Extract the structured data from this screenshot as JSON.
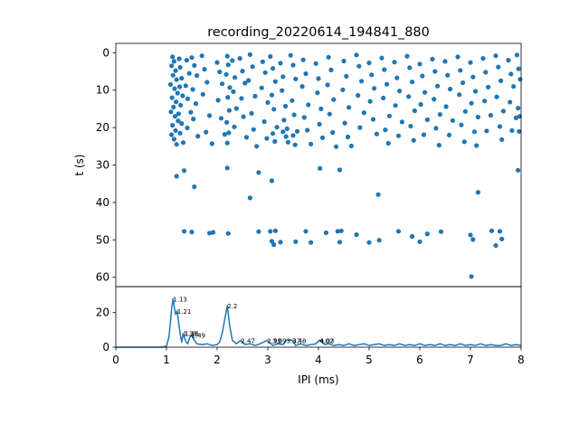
{
  "figure": {
    "title": "recording_20220614_194841_880",
    "accent_color": "#1f77b4"
  },
  "chart_data": [
    {
      "type": "scatter",
      "name": "raster",
      "title": "recording_20220614_194841_880",
      "xlabel": "",
      "ylabel": "t (s)",
      "xlim": [
        0,
        8
      ],
      "ylim": [
        62.5,
        -2.5
      ],
      "y_inverted": true,
      "yticks": [
        0,
        10,
        20,
        30,
        40,
        50,
        60
      ],
      "color": "#1f77b4",
      "points": [
        [
          1.12,
          1.1
        ],
        [
          1.15,
          2.3
        ],
        [
          1.1,
          3.5
        ],
        [
          1.18,
          4.8
        ],
        [
          1.13,
          6.0
        ],
        [
          1.2,
          7.2
        ],
        [
          1.08,
          8.5
        ],
        [
          1.16,
          9.6
        ],
        [
          1.22,
          10.8
        ],
        [
          1.11,
          12.0
        ],
        [
          1.19,
          13.1
        ],
        [
          1.14,
          14.5
        ],
        [
          1.09,
          15.8
        ],
        [
          1.17,
          17.0
        ],
        [
          1.23,
          18.2
        ],
        [
          1.12,
          19.4
        ],
        [
          1.18,
          20.8
        ],
        [
          1.1,
          21.9
        ],
        [
          1.15,
          23.1
        ],
        [
          1.2,
          24.5
        ],
        [
          1.25,
          1.6
        ],
        [
          1.27,
          3.9
        ],
        [
          1.3,
          6.8
        ],
        [
          1.26,
          9.1
        ],
        [
          1.32,
          11.5
        ],
        [
          1.28,
          14.0
        ],
        [
          1.24,
          16.3
        ],
        [
          1.3,
          18.9
        ],
        [
          1.27,
          21.5
        ],
        [
          1.33,
          24.0
        ],
        [
          1.4,
          2.0
        ],
        [
          1.45,
          5.5
        ],
        [
          1.38,
          8.8
        ],
        [
          1.42,
          12.3
        ],
        [
          1.48,
          15.9
        ],
        [
          1.41,
          20.1
        ],
        [
          1.5,
          1.3
        ],
        [
          1.55,
          3.4
        ],
        [
          1.6,
          6.1
        ],
        [
          1.52,
          9.8
        ],
        [
          1.58,
          13.6
        ],
        [
          1.53,
          17.7
        ],
        [
          1.62,
          22.3
        ],
        [
          1.7,
          0.8
        ],
        [
          1.75,
          4.4
        ],
        [
          1.8,
          7.9
        ],
        [
          1.72,
          11.1
        ],
        [
          1.85,
          16.8
        ],
        [
          1.78,
          21.2
        ],
        [
          1.9,
          24.3
        ],
        [
          2.0,
          2.6
        ],
        [
          2.05,
          5.1
        ],
        [
          2.1,
          8.3
        ],
        [
          2.02,
          12.7
        ],
        [
          2.08,
          17.5
        ],
        [
          2.15,
          21.8
        ],
        [
          2.2,
          0.9
        ],
        [
          2.22,
          3.2
        ],
        [
          2.18,
          5.8
        ],
        [
          2.25,
          9.3
        ],
        [
          2.21,
          11.9
        ],
        [
          2.24,
          15.4
        ],
        [
          2.19,
          18.6
        ],
        [
          2.23,
          21.4
        ],
        [
          2.2,
          24.1
        ],
        [
          2.3,
          2.1
        ],
        [
          2.35,
          6.6
        ],
        [
          2.32,
          10.4
        ],
        [
          2.38,
          14.9
        ],
        [
          2.34,
          19.8
        ],
        [
          2.45,
          1.5
        ],
        [
          2.5,
          4.9
        ],
        [
          2.55,
          8.1
        ],
        [
          2.48,
          12.2
        ],
        [
          2.52,
          17.1
        ],
        [
          2.58,
          22.6
        ],
        [
          2.65,
          0.5
        ],
        [
          2.7,
          3.7
        ],
        [
          2.62,
          7.4
        ],
        [
          2.75,
          11.6
        ],
        [
          2.68,
          16.2
        ],
        [
          2.72,
          20.5
        ],
        [
          2.78,
          25.0
        ],
        [
          2.9,
          2.4
        ],
        [
          2.95,
          5.3
        ],
        [
          2.88,
          9.4
        ],
        [
          3.0,
          13.3
        ],
        [
          2.93,
          18.4
        ],
        [
          2.98,
          22.9
        ],
        [
          3.05,
          1.0
        ],
        [
          3.1,
          4.2
        ],
        [
          3.15,
          7.7
        ],
        [
          3.08,
          11.3
        ],
        [
          3.12,
          15.1
        ],
        [
          3.18,
          19.9
        ],
        [
          3.1,
          21.6
        ],
        [
          3.14,
          23.7
        ],
        [
          3.25,
          2.8
        ],
        [
          3.3,
          6.4
        ],
        [
          3.28,
          10.1
        ],
        [
          3.35,
          14.3
        ],
        [
          3.32,
          18.0
        ],
        [
          3.38,
          20.3
        ],
        [
          3.3,
          21.1
        ],
        [
          3.36,
          22.4
        ],
        [
          3.4,
          23.9
        ],
        [
          3.45,
          0.7
        ],
        [
          3.5,
          3.3
        ],
        [
          3.55,
          7.0
        ],
        [
          3.48,
          12.8
        ],
        [
          3.52,
          16.6
        ],
        [
          3.58,
          21.0
        ],
        [
          3.5,
          22.1
        ],
        [
          3.54,
          24.6
        ],
        [
          3.7,
          1.9
        ],
        [
          3.75,
          5.6
        ],
        [
          3.68,
          9.0
        ],
        [
          3.8,
          13.9
        ],
        [
          3.72,
          17.3
        ],
        [
          3.78,
          20.7
        ],
        [
          3.85,
          24.4
        ],
        [
          3.95,
          2.9
        ],
        [
          4.0,
          6.9
        ],
        [
          3.98,
          10.7
        ],
        [
          4.05,
          15.0
        ],
        [
          4.02,
          19.1
        ],
        [
          4.08,
          22.7
        ],
        [
          4.2,
          1.2
        ],
        [
          4.25,
          4.6
        ],
        [
          4.18,
          8.6
        ],
        [
          4.3,
          12.5
        ],
        [
          4.22,
          16.4
        ],
        [
          4.28,
          21.3
        ],
        [
          4.35,
          25.1
        ],
        [
          4.5,
          2.2
        ],
        [
          4.55,
          6.3
        ],
        [
          4.48,
          9.9
        ],
        [
          4.6,
          14.6
        ],
        [
          4.52,
          18.8
        ],
        [
          4.58,
          22.5
        ],
        [
          4.65,
          24.9
        ],
        [
          4.75,
          0.6
        ],
        [
          4.8,
          3.6
        ],
        [
          4.85,
          7.6
        ],
        [
          4.78,
          11.4
        ],
        [
          4.9,
          16.0
        ],
        [
          4.82,
          20.0
        ],
        [
          5.0,
          2.7
        ],
        [
          5.05,
          5.9
        ],
        [
          5.1,
          9.5
        ],
        [
          5.02,
          13.0
        ],
        [
          5.08,
          17.8
        ],
        [
          5.15,
          21.7
        ],
        [
          5.25,
          1.4
        ],
        [
          5.3,
          4.5
        ],
        [
          5.35,
          8.4
        ],
        [
          5.28,
          12.1
        ],
        [
          5.4,
          16.9
        ],
        [
          5.32,
          20.6
        ],
        [
          5.38,
          24.2
        ],
        [
          5.5,
          2.5
        ],
        [
          5.55,
          6.7
        ],
        [
          5.6,
          10.2
        ],
        [
          5.52,
          14.1
        ],
        [
          5.65,
          18.5
        ],
        [
          5.58,
          22.2
        ],
        [
          5.75,
          0.9
        ],
        [
          5.8,
          4.0
        ],
        [
          5.85,
          7.8
        ],
        [
          5.78,
          11.7
        ],
        [
          5.9,
          15.5
        ],
        [
          5.82,
          19.6
        ],
        [
          5.88,
          23.4
        ],
        [
          6.0,
          3.0
        ],
        [
          6.05,
          6.2
        ],
        [
          6.1,
          10.6
        ],
        [
          6.02,
          13.8
        ],
        [
          6.15,
          17.9
        ],
        [
          6.08,
          21.9
        ],
        [
          6.25,
          1.7
        ],
        [
          6.3,
          5.0
        ],
        [
          6.35,
          8.9
        ],
        [
          6.28,
          12.4
        ],
        [
          6.4,
          16.5
        ],
        [
          6.32,
          20.2
        ],
        [
          6.38,
          24.7
        ],
        [
          6.5,
          2.3
        ],
        [
          6.55,
          6.0
        ],
        [
          6.6,
          9.7
        ],
        [
          6.52,
          14.4
        ],
        [
          6.65,
          18.1
        ],
        [
          6.58,
          22.0
        ],
        [
          6.75,
          1.1
        ],
        [
          6.8,
          4.7
        ],
        [
          6.85,
          8.0
        ],
        [
          6.78,
          11.2
        ],
        [
          6.9,
          15.7
        ],
        [
          6.82,
          19.3
        ],
        [
          6.88,
          23.8
        ],
        [
          7.0,
          2.6
        ],
        [
          7.05,
          6.5
        ],
        [
          7.1,
          10.3
        ],
        [
          7.02,
          13.5
        ],
        [
          7.15,
          17.2
        ],
        [
          7.08,
          21.1
        ],
        [
          7.12,
          24.8
        ],
        [
          7.25,
          1.5
        ],
        [
          7.3,
          5.2
        ],
        [
          7.35,
          9.2
        ],
        [
          7.28,
          12.9
        ],
        [
          7.4,
          16.7
        ],
        [
          7.32,
          20.9
        ],
        [
          7.5,
          0.8
        ],
        [
          7.55,
          3.8
        ],
        [
          7.6,
          7.5
        ],
        [
          7.52,
          11.8
        ],
        [
          7.65,
          15.6
        ],
        [
          7.58,
          19.7
        ],
        [
          7.62,
          23.2
        ],
        [
          7.75,
          2.0
        ],
        [
          7.8,
          5.7
        ],
        [
          7.85,
          9.0
        ],
        [
          7.78,
          13.2
        ],
        [
          7.9,
          17.4
        ],
        [
          7.82,
          20.8
        ],
        [
          7.92,
          0.6
        ],
        [
          7.95,
          4.3
        ],
        [
          7.98,
          7.1
        ],
        [
          7.94,
          14.8
        ],
        [
          7.97,
          17.0
        ],
        [
          7.96,
          21.0
        ],
        [
          1.2,
          33.0
        ],
        [
          1.35,
          31.5
        ],
        [
          1.55,
          35.8
        ],
        [
          2.2,
          30.8
        ],
        [
          2.65,
          38.8
        ],
        [
          2.82,
          32.0
        ],
        [
          3.08,
          34.2
        ],
        [
          4.03,
          30.9
        ],
        [
          4.42,
          31.3
        ],
        [
          5.18,
          37.9
        ],
        [
          7.15,
          37.3
        ],
        [
          7.94,
          31.4
        ],
        [
          1.35,
          47.7
        ],
        [
          1.5,
          47.9
        ],
        [
          1.85,
          48.2
        ],
        [
          1.92,
          48.0
        ],
        [
          2.22,
          48.3
        ],
        [
          2.82,
          47.8
        ],
        [
          3.05,
          47.7
        ],
        [
          3.08,
          50.4
        ],
        [
          3.12,
          51.3
        ],
        [
          3.15,
          47.6
        ],
        [
          3.25,
          50.6
        ],
        [
          3.55,
          50.5
        ],
        [
          3.75,
          47.7
        ],
        [
          3.85,
          50.7
        ],
        [
          4.15,
          48.1
        ],
        [
          4.38,
          47.7
        ],
        [
          4.42,
          50.6
        ],
        [
          4.45,
          47.6
        ],
        [
          4.75,
          48.6
        ],
        [
          5.0,
          50.7
        ],
        [
          5.2,
          50.1
        ],
        [
          5.58,
          47.7
        ],
        [
          5.85,
          49.1
        ],
        [
          6.0,
          50.5
        ],
        [
          6.15,
          48.4
        ],
        [
          6.42,
          47.8
        ],
        [
          7.0,
          48.7
        ],
        [
          7.05,
          49.9
        ],
        [
          7.42,
          47.6
        ],
        [
          7.5,
          51.5
        ],
        [
          7.58,
          47.7
        ],
        [
          7.62,
          49.8
        ],
        [
          7.02,
          59.8
        ]
      ]
    },
    {
      "type": "line",
      "name": "histogram",
      "xlabel": "IPI (ms)",
      "ylabel": "",
      "xlim": [
        0,
        8
      ],
      "ylim": [
        0,
        35
      ],
      "xticks": [
        0,
        1,
        2,
        3,
        4,
        5,
        6,
        7,
        8
      ],
      "yticks": [
        0,
        20
      ],
      "color": "#1f77b4",
      "x": [
        0,
        0.5,
        0.9,
        1.0,
        1.05,
        1.08,
        1.1,
        1.13,
        1.15,
        1.18,
        1.21,
        1.25,
        1.28,
        1.3,
        1.33,
        1.36,
        1.39,
        1.42,
        1.45,
        1.49,
        1.55,
        1.6,
        1.7,
        1.8,
        1.9,
        2.0,
        2.05,
        2.1,
        2.15,
        2.2,
        2.25,
        2.3,
        2.38,
        2.47,
        2.55,
        2.65,
        2.75,
        2.85,
        2.99,
        3.1,
        3.2,
        3.3,
        3.37,
        3.48,
        3.55,
        3.65,
        3.75,
        3.85,
        3.95,
        4.02,
        4.03,
        4.12,
        4.2,
        4.3,
        4.4,
        4.5,
        4.6,
        4.7,
        4.8,
        4.9,
        5.0,
        5.1,
        5.2,
        5.3,
        5.4,
        5.5,
        5.6,
        5.7,
        5.8,
        5.9,
        6.0,
        6.1,
        6.2,
        6.3,
        6.4,
        6.5,
        6.6,
        6.7,
        6.8,
        6.9,
        7.0,
        7.1,
        7.2,
        7.3,
        7.4,
        7.5,
        7.6,
        7.7,
        7.8,
        7.9,
        8.0
      ],
      "y": [
        0,
        0,
        0,
        0.5,
        6,
        15,
        22,
        28,
        24,
        19,
        21,
        12,
        6,
        3,
        8,
        5,
        3,
        2,
        5,
        7,
        4,
        2,
        1.5,
        2,
        1,
        1.5,
        3,
        8,
        16,
        24,
        12,
        4,
        2,
        4,
        1.5,
        2,
        1,
        2,
        4,
        1,
        2,
        1.5,
        4,
        4,
        1,
        2,
        1,
        1.5,
        2,
        4,
        4,
        1.5,
        2,
        1,
        1.5,
        1,
        2,
        1,
        1.5,
        2,
        1,
        1.5,
        2,
        1,
        1.5,
        1,
        2,
        1,
        1.5,
        1,
        2,
        1,
        1.5,
        1,
        2,
        1,
        1.5,
        1,
        2,
        1,
        1.5,
        1,
        2,
        1,
        1.5,
        1,
        1,
        2,
        1,
        1.5,
        1
      ],
      "annotations": [
        {
          "x": 1.13,
          "y": 28,
          "text": "1.13"
        },
        {
          "x": 1.21,
          "y": 21,
          "text": "1.21"
        },
        {
          "x": 1.33,
          "y": 8,
          "text": "1.33"
        },
        {
          "x": 1.36,
          "y": 8,
          "text": "1.36"
        },
        {
          "x": 1.49,
          "y": 7,
          "text": "1.49"
        },
        {
          "x": 2.2,
          "y": 24,
          "text": "2.2"
        },
        {
          "x": 2.47,
          "y": 4,
          "text": "2.47"
        },
        {
          "x": 2.99,
          "y": 4,
          "text": "2.99"
        },
        {
          "x": 3.09,
          "y": 4,
          "text": "3.09"
        },
        {
          "x": 3.37,
          "y": 4,
          "text": "3.37"
        },
        {
          "x": 3.48,
          "y": 4,
          "text": "3.48"
        },
        {
          "x": 4.02,
          "y": 4,
          "text": "4.02"
        },
        {
          "x": 4.03,
          "y": 4,
          "text": "4.03"
        }
      ]
    }
  ]
}
